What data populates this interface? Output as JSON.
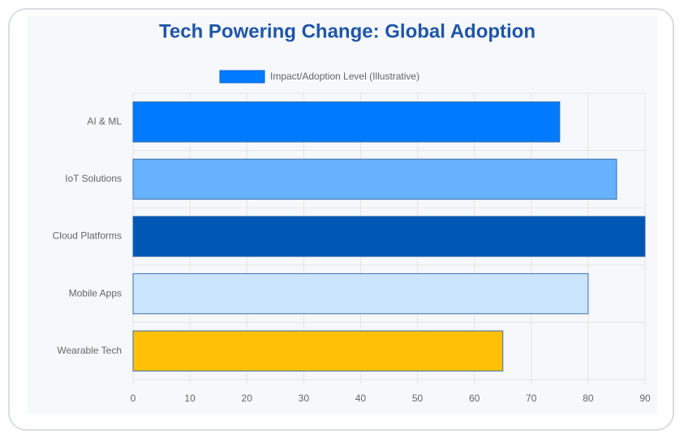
{
  "chart_data": {
    "type": "bar",
    "orientation": "horizontal",
    "title": "Tech Powering Change: Global Adoption",
    "categories": [
      "AI & ML",
      "IoT Solutions",
      "Cloud Platforms",
      "Mobile Apps",
      "Wearable Tech"
    ],
    "series": [
      {
        "name": "Impact/Adoption Level (Illustrative)",
        "color": "#007bff",
        "colors": [
          "#007bff",
          "#66b2ff",
          "#0056b3",
          "#cce5ff",
          "#ffc107"
        ],
        "values": [
          75,
          85,
          90,
          80,
          65
        ]
      }
    ],
    "xlim": [
      0,
      90
    ],
    "xticks": [
      0,
      10,
      20,
      30,
      40,
      50,
      60,
      70,
      80,
      90
    ],
    "grid": true
  }
}
